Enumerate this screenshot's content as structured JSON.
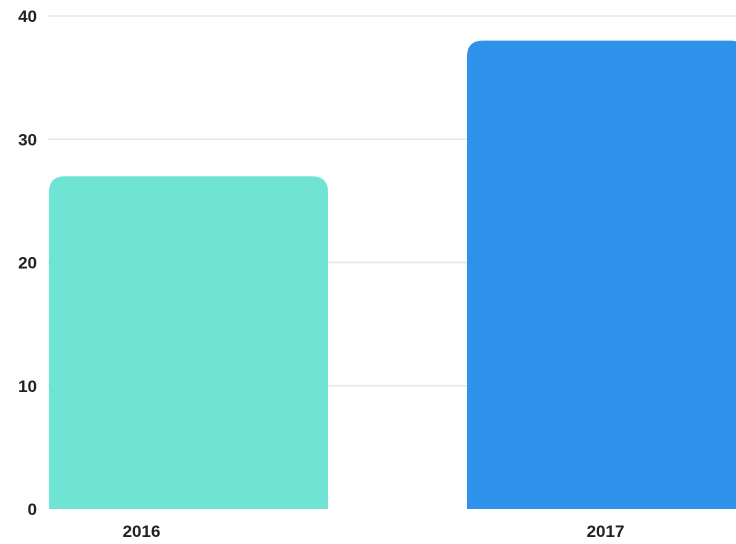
{
  "chart_data": {
    "type": "bar",
    "categories": [
      "2016",
      "2017"
    ],
    "values": [
      27,
      38
    ],
    "colors": [
      "#70e4d4",
      "#2f92ea"
    ],
    "title": "",
    "xlabel": "",
    "ylabel": "",
    "ylim": [
      0,
      40
    ],
    "yticks": [
      0,
      10,
      20,
      30,
      40
    ],
    "grid": true,
    "legend": "none"
  }
}
